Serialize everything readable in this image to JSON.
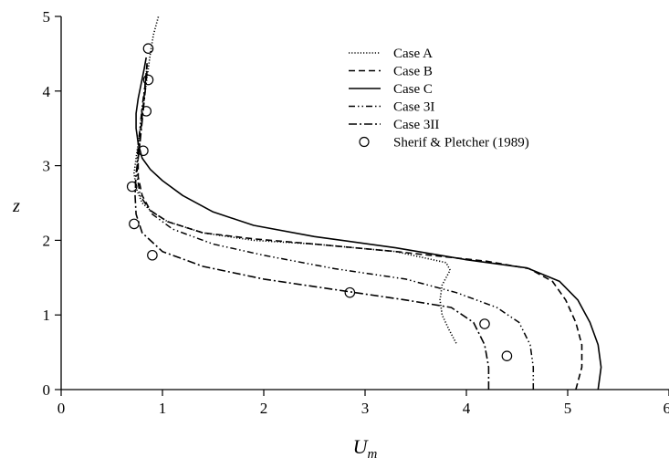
{
  "chart_data": {
    "type": "line",
    "xlabel": "U",
    "xlabel_sub": "m",
    "ylabel": "z",
    "xlim": [
      0,
      6
    ],
    "ylim": [
      0,
      5
    ],
    "x_ticks": [
      0,
      1,
      2,
      3,
      4,
      5,
      6
    ],
    "y_ticks": [
      0,
      1,
      2,
      3,
      4,
      5
    ],
    "grid": false,
    "legend_position": "top-right",
    "series": [
      {
        "name": "Case A",
        "style": "dotted",
        "points": [
          [
            3.9,
            0.62
          ],
          [
            3.83,
            0.8
          ],
          [
            3.76,
            1.0
          ],
          [
            3.74,
            1.2
          ],
          [
            3.76,
            1.4
          ],
          [
            3.84,
            1.6
          ],
          [
            3.8,
            1.7
          ],
          [
            3.3,
            1.85
          ],
          [
            2.5,
            1.95
          ],
          [
            1.9,
            2.0
          ],
          [
            1.4,
            2.1
          ],
          [
            1.05,
            2.25
          ],
          [
            0.9,
            2.38
          ],
          [
            0.8,
            2.5
          ],
          [
            0.74,
            2.7
          ],
          [
            0.72,
            2.9
          ],
          [
            0.74,
            3.1
          ],
          [
            0.76,
            3.3
          ],
          [
            0.79,
            3.6
          ],
          [
            0.82,
            3.9
          ],
          [
            0.85,
            4.2
          ],
          [
            0.88,
            4.5
          ],
          [
            0.91,
            4.75
          ],
          [
            0.96,
            5.0
          ]
        ]
      },
      {
        "name": "Case B",
        "style": "dashed",
        "points": [
          [
            5.08,
            0.0
          ],
          [
            5.14,
            0.3
          ],
          [
            5.14,
            0.6
          ],
          [
            5.08,
            0.9
          ],
          [
            4.98,
            1.2
          ],
          [
            4.85,
            1.45
          ],
          [
            4.62,
            1.62
          ],
          [
            4.2,
            1.72
          ],
          [
            3.3,
            1.85
          ],
          [
            2.5,
            1.95
          ],
          [
            1.9,
            2.02
          ],
          [
            1.4,
            2.1
          ],
          [
            1.05,
            2.25
          ],
          [
            0.88,
            2.4
          ],
          [
            0.8,
            2.6
          ],
          [
            0.76,
            2.85
          ],
          [
            0.76,
            3.1
          ],
          [
            0.78,
            3.4
          ],
          [
            0.81,
            3.8
          ],
          [
            0.83,
            4.1
          ],
          [
            0.85,
            4.4
          ]
        ]
      },
      {
        "name": "Case C",
        "style": "solid",
        "points": [
          [
            5.3,
            0.0
          ],
          [
            5.33,
            0.3
          ],
          [
            5.3,
            0.6
          ],
          [
            5.22,
            0.9
          ],
          [
            5.1,
            1.2
          ],
          [
            4.92,
            1.45
          ],
          [
            4.6,
            1.63
          ],
          [
            4.0,
            1.74
          ],
          [
            3.3,
            1.9
          ],
          [
            2.5,
            2.05
          ],
          [
            1.9,
            2.2
          ],
          [
            1.5,
            2.38
          ],
          [
            1.2,
            2.6
          ],
          [
            1.0,
            2.8
          ],
          [
            0.88,
            2.95
          ],
          [
            0.8,
            3.1
          ],
          [
            0.76,
            3.3
          ],
          [
            0.74,
            3.5
          ],
          [
            0.74,
            3.7
          ],
          [
            0.76,
            3.9
          ],
          [
            0.79,
            4.1
          ],
          [
            0.82,
            4.3
          ],
          [
            0.84,
            4.45
          ]
        ]
      },
      {
        "name": "Case 3I",
        "style": "dash-dot-dot",
        "points": [
          [
            4.66,
            0.0
          ],
          [
            4.66,
            0.3
          ],
          [
            4.63,
            0.6
          ],
          [
            4.52,
            0.9
          ],
          [
            4.3,
            1.1
          ],
          [
            3.9,
            1.3
          ],
          [
            3.4,
            1.48
          ],
          [
            2.7,
            1.62
          ],
          [
            2.0,
            1.8
          ],
          [
            1.5,
            1.95
          ],
          [
            1.1,
            2.15
          ],
          [
            0.9,
            2.35
          ],
          [
            0.78,
            2.6
          ],
          [
            0.75,
            2.85
          ],
          [
            0.75,
            3.1
          ],
          [
            0.77,
            3.4
          ],
          [
            0.8,
            3.8
          ],
          [
            0.83,
            4.1
          ],
          [
            0.85,
            4.35
          ]
        ]
      },
      {
        "name": "Case 3II",
        "style": "dash-dot",
        "points": [
          [
            4.22,
            0.0
          ],
          [
            4.22,
            0.3
          ],
          [
            4.18,
            0.6
          ],
          [
            4.07,
            0.9
          ],
          [
            3.85,
            1.1
          ],
          [
            3.4,
            1.2
          ],
          [
            2.7,
            1.34
          ],
          [
            2.0,
            1.48
          ],
          [
            1.4,
            1.65
          ],
          [
            1.0,
            1.85
          ],
          [
            0.8,
            2.1
          ],
          [
            0.74,
            2.35
          ],
          [
            0.73,
            2.6
          ],
          [
            0.74,
            2.9
          ],
          [
            0.77,
            3.2
          ],
          [
            0.8,
            3.6
          ],
          [
            0.83,
            4.0
          ],
          [
            0.85,
            4.3
          ]
        ]
      },
      {
        "name": "Sherif & Pletcher (1989)",
        "style": "circle-markers",
        "points": [
          [
            0.86,
            4.57
          ],
          [
            0.86,
            4.15
          ],
          [
            0.84,
            3.73
          ],
          [
            0.81,
            3.2
          ],
          [
            0.7,
            2.72
          ],
          [
            0.72,
            2.22
          ],
          [
            0.9,
            1.8
          ],
          [
            2.85,
            1.3
          ],
          [
            4.18,
            0.88
          ],
          [
            4.4,
            0.45
          ]
        ]
      }
    ]
  }
}
